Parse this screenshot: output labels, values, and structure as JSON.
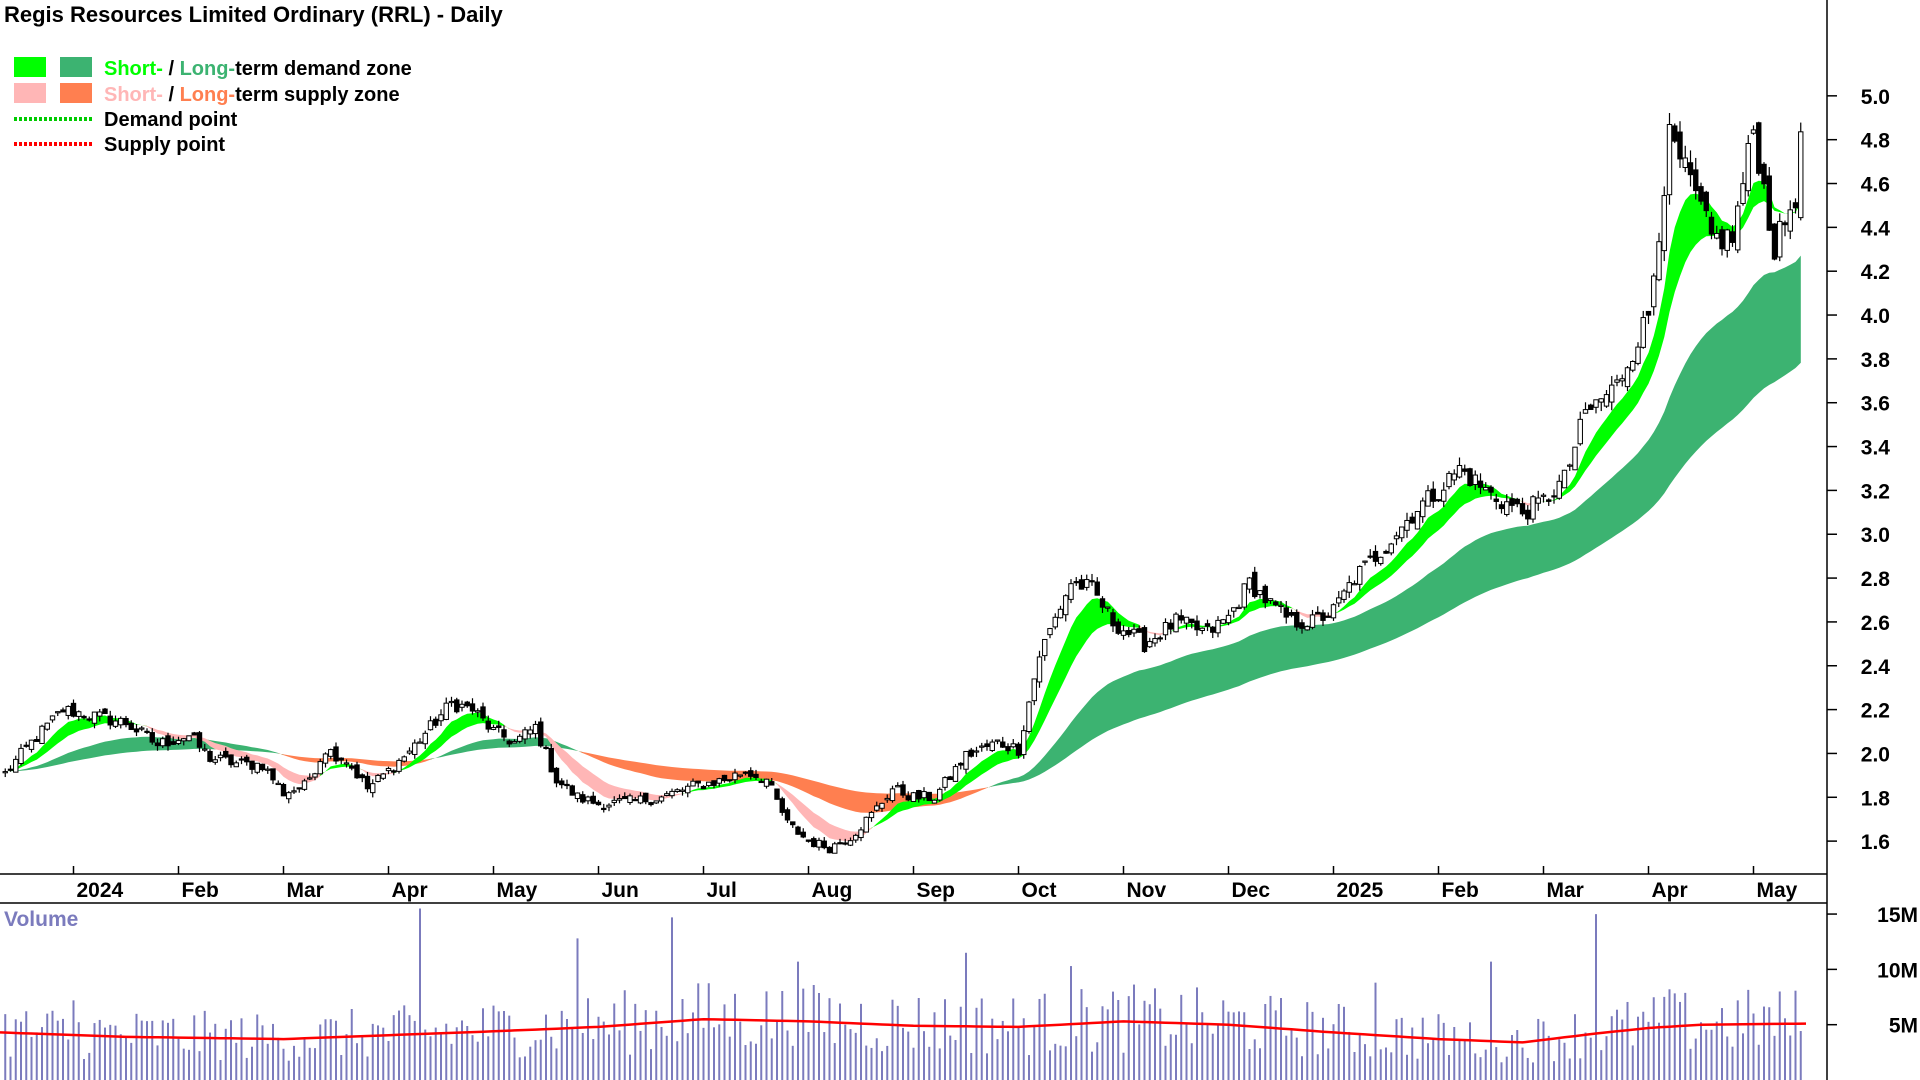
{
  "title": "Regis Resources Limited Ordinary (RRL) - Daily",
  "legend": {
    "demand_zone": {
      "short": "Short-",
      "sep": " / ",
      "long": "Long-",
      "rest": "term demand zone"
    },
    "supply_zone": {
      "short": "Short-",
      "sep": " / ",
      "long": "Long-",
      "rest": "term supply zone"
    },
    "demand_point": "Demand point",
    "supply_point": "Supply point"
  },
  "volume_label": "Volume",
  "colors": {
    "short_demand": "#00ff00",
    "long_demand": "#3cb371",
    "short_supply": "#ffb6b6",
    "long_supply": "#ff7f50",
    "demand_point": "#00cc00",
    "supply_point": "#ff0000",
    "volume_bars": "#7b7bbd",
    "volume_ma": "#ff0000",
    "candle_up": "#ffffff",
    "candle_down": "#000000"
  },
  "chart_data": {
    "type": "candlestick",
    "price_axis": {
      "ticks": [
        "1.6",
        "1.8",
        "2.0",
        "2.2",
        "2.4",
        "2.6",
        "2.8",
        "3.0",
        "3.2",
        "3.4",
        "3.6",
        "3.8",
        "4.0",
        "4.2",
        "4.4",
        "4.6",
        "4.8",
        "5.0"
      ],
      "range": [
        1.45,
        5.2
      ]
    },
    "volume_axis": {
      "ticks": [
        "5M",
        "10M",
        "15M"
      ],
      "range": [
        0,
        16
      ]
    },
    "x_axis": {
      "labels": [
        "2024",
        "Feb",
        "Mar",
        "Apr",
        "May",
        "Jun",
        "Jul",
        "Aug",
        "Sep",
        "Oct",
        "Nov",
        "Dec",
        "2025",
        "Feb",
        "Mar",
        "Apr",
        "May"
      ],
      "label_months": [
        0,
        1,
        2,
        3,
        4,
        5,
        6,
        7,
        8,
        9,
        10,
        11,
        12,
        13,
        14,
        15,
        16
      ],
      "range_months": [
        -0.7,
        16.7
      ]
    },
    "price_path": [
      [
        -0.7,
        1.88
      ],
      [
        -0.4,
        2.05
      ],
      [
        -0.1,
        2.2
      ],
      [
        0.2,
        2.17
      ],
      [
        0.5,
        2.14
      ],
      [
        0.8,
        2.04
      ],
      [
        1.0,
        2.07
      ],
      [
        1.1,
        2.08
      ],
      [
        1.3,
        1.98
      ],
      [
        1.6,
        1.95
      ],
      [
        1.8,
        1.95
      ],
      [
        2.0,
        1.82
      ],
      [
        2.2,
        1.85
      ],
      [
        2.4,
        2.02
      ],
      [
        2.6,
        1.97
      ],
      [
        2.8,
        1.84
      ],
      [
        3.0,
        1.92
      ],
      [
        3.2,
        2.01
      ],
      [
        3.4,
        2.12
      ],
      [
        3.6,
        2.23
      ],
      [
        3.8,
        2.2
      ],
      [
        4.0,
        2.1
      ],
      [
        4.2,
        2.05
      ],
      [
        4.4,
        2.12
      ],
      [
        4.6,
        1.88
      ],
      [
        4.8,
        1.8
      ],
      [
        5.0,
        1.77
      ],
      [
        5.3,
        1.78
      ],
      [
        5.6,
        1.8
      ],
      [
        5.9,
        1.85
      ],
      [
        6.2,
        1.88
      ],
      [
        6.4,
        1.92
      ],
      [
        6.6,
        1.88
      ],
      [
        6.8,
        1.68
      ],
      [
        7.0,
        1.6
      ],
      [
        7.2,
        1.57
      ],
      [
        7.4,
        1.62
      ],
      [
        7.6,
        1.72
      ],
      [
        7.8,
        1.84
      ],
      [
        8.0,
        1.8
      ],
      [
        8.2,
        1.8
      ],
      [
        8.5,
        1.99
      ],
      [
        8.8,
        2.05
      ],
      [
        9.0,
        2.02
      ],
      [
        9.2,
        2.45
      ],
      [
        9.5,
        2.78
      ],
      [
        9.7,
        2.75
      ],
      [
        9.9,
        2.6
      ],
      [
        10.2,
        2.5
      ],
      [
        10.5,
        2.6
      ],
      [
        10.8,
        2.55
      ],
      [
        11.0,
        2.62
      ],
      [
        11.2,
        2.78
      ],
      [
        11.4,
        2.68
      ],
      [
        11.6,
        2.6
      ],
      [
        11.8,
        2.6
      ],
      [
        12.0,
        2.65
      ],
      [
        12.2,
        2.8
      ],
      [
        12.5,
        2.95
      ],
      [
        12.8,
        3.12
      ],
      [
        13.0,
        3.2
      ],
      [
        13.2,
        3.3
      ],
      [
        13.5,
        3.18
      ],
      [
        13.8,
        3.1
      ],
      [
        14.0,
        3.15
      ],
      [
        14.2,
        3.25
      ],
      [
        14.4,
        3.55
      ],
      [
        14.7,
        3.68
      ],
      [
        15.0,
        4.0
      ],
      [
        15.2,
        4.8
      ],
      [
        15.4,
        4.6
      ],
      [
        15.6,
        4.35
      ],
      [
        15.8,
        4.35
      ],
      [
        16.0,
        4.85
      ],
      [
        16.2,
        4.3
      ],
      [
        16.4,
        4.55
      ],
      [
        16.5,
        5.0
      ]
    ],
    "volume_ma_path": [
      [
        -0.7,
        4.3
      ],
      [
        0.5,
        3.9
      ],
      [
        2.0,
        3.7
      ],
      [
        4.0,
        4.4
      ],
      [
        5.0,
        4.8
      ],
      [
        6.0,
        5.5
      ],
      [
        7.0,
        5.3
      ],
      [
        8.0,
        4.9
      ],
      [
        9.0,
        4.8
      ],
      [
        10.0,
        5.3
      ],
      [
        11.0,
        5.0
      ],
      [
        12.0,
        4.3
      ],
      [
        13.0,
        3.7
      ],
      [
        13.8,
        3.4
      ],
      [
        14.5,
        4.2
      ],
      [
        15.0,
        4.7
      ],
      [
        15.5,
        5.0
      ],
      [
        16.5,
        5.1
      ]
    ],
    "volume_spikes": [
      [
        0.0,
        7.2
      ],
      [
        3.3,
        15.5
      ],
      [
        4.8,
        12.8
      ],
      [
        5.7,
        14.7
      ],
      [
        6.9,
        10.7
      ],
      [
        8.5,
        11.5
      ],
      [
        9.5,
        10.3
      ],
      [
        12.4,
        8.8
      ],
      [
        13.5,
        10.7
      ],
      [
        14.5,
        15.0
      ],
      [
        15.2,
        8.2
      ]
    ],
    "demand_zone_short": {
      "start": -0.7,
      "end": 16.5
    },
    "demand_zone_long": {
      "start": -0.7,
      "end": 16.5
    },
    "supply_zone_short_segments": [
      [
        1.3,
        3.0
      ],
      [
        5.0,
        7.8
      ]
    ],
    "supply_zone_long_segments": [
      [
        -0.7,
        0.3
      ],
      [
        3.3,
        4.8
      ],
      [
        5.0,
        8.4
      ],
      [
        9.5,
        10.0
      ],
      [
        10.5,
        11.0
      ],
      [
        11.6,
        12.1
      ],
      [
        16.2,
        16.5
      ]
    ]
  }
}
